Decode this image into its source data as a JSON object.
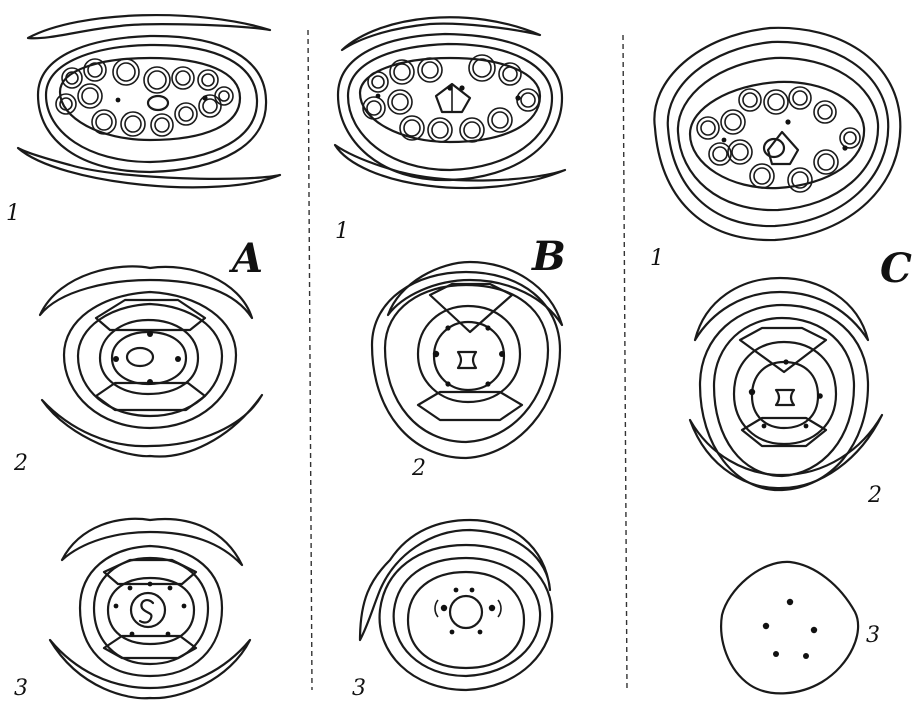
{
  "panels": [
    {
      "letter": "A",
      "stages": [
        "1",
        "2",
        "3"
      ]
    },
    {
      "letter": "B",
      "stages": [
        "1",
        "2",
        "3"
      ]
    },
    {
      "letter": "C",
      "stages": [
        "1",
        "2",
        "3"
      ]
    }
  ]
}
